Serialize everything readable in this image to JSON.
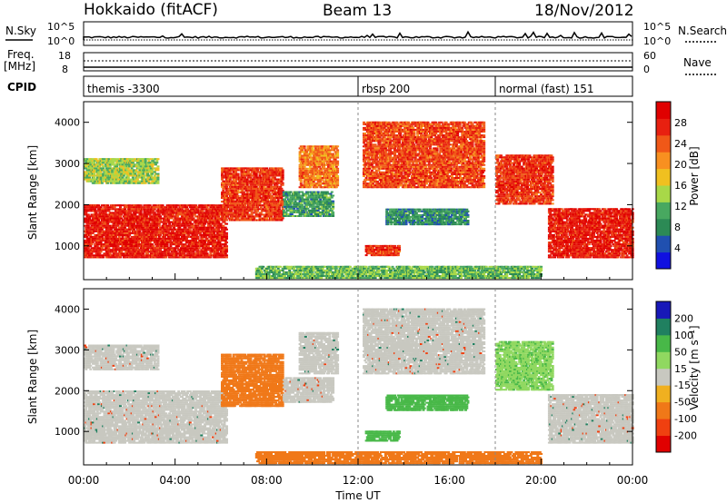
{
  "header": {
    "station": "Hokkaido (fitACF)",
    "beam": "Beam 13",
    "date": "18/Nov/2012"
  },
  "nsky": {
    "label": "N.Sky",
    "tick_top": "10^5",
    "tick_bottom": "10^0",
    "right_label": "N.Search",
    "right_tick_top": "10^5",
    "right_tick_bottom": "10^0"
  },
  "freq": {
    "label": "Freq.",
    "unit": "[MHz]",
    "tick_top": "18",
    "tick_bottom": "8",
    "right_label": "Nave",
    "right_tick_top": "60",
    "right_tick_bottom": "0"
  },
  "cpid": {
    "label": "CPID",
    "segments": [
      {
        "label": "themis -3300",
        "start": 0
      },
      {
        "label": "rbsp 200",
        "start": 12
      },
      {
        "label": "normal (fast) 151",
        "start": 18
      }
    ]
  },
  "colors": {
    "bg": "#ffffff",
    "axis": "#000000"
  },
  "chart_data": [
    {
      "type": "heatmap",
      "name": "Power",
      "x": {
        "label": "Time UT",
        "range": [
          0,
          24
        ],
        "ticks": [
          "00:00",
          "04:00",
          "08:00",
          "12:00",
          "16:00",
          "20:00",
          "00:00"
        ]
      },
      "ylabel": "Slant Range [km]",
      "ylim": [
        180,
        4500
      ],
      "yticks": [
        "1000",
        "2000",
        "3000",
        "4000"
      ],
      "colorbar": {
        "label": "Power [dB]",
        "ticks": [
          "4",
          "8",
          "12",
          "16",
          "20",
          "24",
          "28"
        ],
        "colors": [
          "#1010e0",
          "#2050b0",
          "#2c8a55",
          "#48a860",
          "#a8d848",
          "#f0c020",
          "#f89020",
          "#f05818",
          "#e82010",
          "#e00000"
        ]
      },
      "regions": [
        {
          "t0": 0,
          "t1": 6.2,
          "r0": 700,
          "r1": 2000,
          "level": 28
        },
        {
          "t0": 0,
          "t1": 3.2,
          "r0": 2500,
          "r1": 3100,
          "level": 14
        },
        {
          "t0": 6.0,
          "t1": 8.7,
          "r0": 1600,
          "r1": 2900,
          "level": 26
        },
        {
          "t0": 8.7,
          "t1": 10.9,
          "r0": 1700,
          "r1": 2300,
          "level": 10
        },
        {
          "t0": 9.4,
          "t1": 11.1,
          "r0": 2400,
          "r1": 3400,
          "level": 22
        },
        {
          "t0": 12.2,
          "t1": 17.5,
          "r0": 2400,
          "r1": 4000,
          "level": 25
        },
        {
          "t0": 13.2,
          "t1": 16.8,
          "r0": 1500,
          "r1": 1900,
          "level": 9
        },
        {
          "t0": 12.3,
          "t1": 13.8,
          "r0": 750,
          "r1": 1000,
          "level": 26
        },
        {
          "t0": 18.0,
          "t1": 20.5,
          "r0": 2000,
          "r1": 3200,
          "level": 26
        },
        {
          "t0": 20.3,
          "t1": 24,
          "r0": 700,
          "r1": 1900,
          "level": 28
        },
        {
          "t0": 7.5,
          "t1": 20,
          "r0": 200,
          "r1": 500,
          "level": 12
        }
      ]
    },
    {
      "type": "heatmap",
      "name": "Velocity",
      "x": {
        "label": "Time UT",
        "range": [
          0,
          24
        ],
        "ticks": [
          "00:00",
          "04:00",
          "08:00",
          "12:00",
          "16:00",
          "20:00",
          "00:00"
        ]
      },
      "ylabel": "Slant Range [km]",
      "ylim": [
        180,
        4500
      ],
      "yticks": [
        "1000",
        "2000",
        "3000",
        "4000"
      ],
      "colorbar": {
        "label": "Velocity [m s⁻¹]",
        "ticks": [
          "200",
          "100",
          "50",
          "15",
          "-15",
          "-50",
          "-100",
          "-200"
        ],
        "colors": [
          "#1818b8",
          "#208060",
          "#48b848",
          "#90d860",
          "#c8c8c0",
          "#f0b020",
          "#f07818",
          "#f04010",
          "#e00000"
        ]
      },
      "regions": [
        {
          "t0": 0,
          "t1": 6.2,
          "r0": 700,
          "r1": 2000,
          "level": 0
        },
        {
          "t0": 0,
          "t1": 3.2,
          "r0": 2500,
          "r1": 3100,
          "level": 0
        },
        {
          "t0": 6.0,
          "t1": 8.7,
          "r0": 1600,
          "r1": 2900,
          "level": -40
        },
        {
          "t0": 8.7,
          "t1": 10.9,
          "r0": 1700,
          "r1": 2300,
          "level": 0
        },
        {
          "t0": 9.4,
          "t1": 11.1,
          "r0": 2400,
          "r1": 3400,
          "level": 0
        },
        {
          "t0": 12.2,
          "t1": 17.5,
          "r0": 2400,
          "r1": 4000,
          "level": 0
        },
        {
          "t0": 13.2,
          "t1": 16.8,
          "r0": 1500,
          "r1": 1900,
          "level": 40
        },
        {
          "t0": 12.3,
          "t1": 13.8,
          "r0": 750,
          "r1": 1000,
          "level": 40
        },
        {
          "t0": 18.0,
          "t1": 20.5,
          "r0": 2000,
          "r1": 3200,
          "level": 30
        },
        {
          "t0": 20.3,
          "t1": 24,
          "r0": 700,
          "r1": 1900,
          "level": 0
        },
        {
          "t0": 7.5,
          "t1": 20,
          "r0": 200,
          "r1": 500,
          "level": -40
        }
      ]
    }
  ]
}
